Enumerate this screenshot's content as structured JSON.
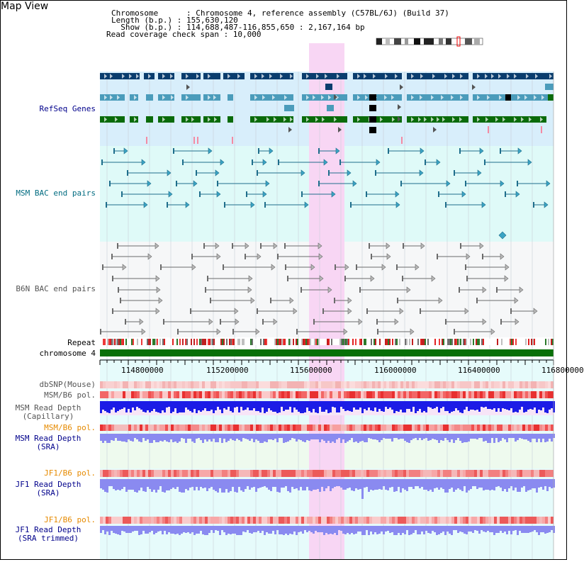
{
  "title": "Map View",
  "info": {
    "chromosome": "Chromosome      : Chromosome 4, reference assembly (C57BL/6J) (Build 37)",
    "length": "Length (b.p.) : 155,630,120",
    "show": "  Show (b.p.) : 114,688,487-116,855,650 : 2,167,164 bp",
    "coverage": "Read coverage check span : 10,000"
  },
  "tracks": {
    "refseq": "RefSeq Genes",
    "msm_bac": "MSM BAC end pairs",
    "b6n_bac": "B6N BAC end pairs",
    "repeat": "Repeat",
    "chromosome": "chromosome 4",
    "dbsnp": "dbSNP(Mouse)",
    "msm_b6_pol": "MSM/B6 pol.",
    "msm_depth_cap_1": "MSM Read Depth",
    "msm_depth_cap_2": "(Capillary)",
    "msm_b6_pol2": "MSM/B6 pol.",
    "msm_depth_sra_1": "MSM Read Depth",
    "msm_depth_sra_2": "(SRA)",
    "jf1_b6_pol": "JF1/B6 pol.",
    "jf1_depth_sra_1": "JF1 Read Depth",
    "jf1_depth_sra_2": "(SRA)",
    "jf1_b6_pol2": "JF1/B6 pol.",
    "jf1_depth_trim_1": "JF1 Read Depth",
    "jf1_depth_trim_2": "(SRA trimmed)"
  },
  "axis": {
    "ticks": [
      "114800000",
      "115200000",
      "115600000",
      "116000000",
      "116400000",
      "116800000"
    ]
  },
  "colors": {
    "highlight": "#f8d6f4",
    "refseq_bg": "#d8eefb",
    "msm_bg": "#dffaf8",
    "navy": "#0a3d6e",
    "steel": "#4b9cbb",
    "green": "#0a6b0a",
    "chromosome": "#087008",
    "depth_blue": "#1c1ce6",
    "depth_light": "#8a8af0"
  }
}
